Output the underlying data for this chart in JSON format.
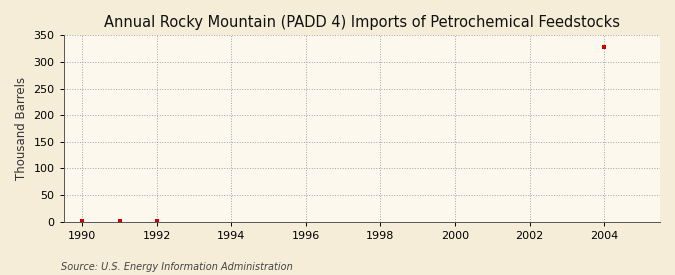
{
  "title": "Annual Rocky Mountain (PADD 4) Imports of Petrochemical Feedstocks",
  "ylabel": "Thousand Barrels",
  "source_text": "Source: U.S. Energy Information Administration",
  "background_color": "#f5edd8",
  "plot_bg_color": "#fdf8ee",
  "data_points": [
    {
      "year": 1990,
      "value": 2
    },
    {
      "year": 1991,
      "value": 2
    },
    {
      "year": 1992,
      "value": 2
    },
    {
      "year": 2004,
      "value": 328
    }
  ],
  "marker_color": "#cc0000",
  "marker": "s",
  "marker_size": 3.5,
  "xlim": [
    1989.5,
    2005.5
  ],
  "ylim": [
    0,
    350
  ],
  "yticks": [
    0,
    50,
    100,
    150,
    200,
    250,
    300,
    350
  ],
  "xticks": [
    1990,
    1992,
    1994,
    1996,
    1998,
    2000,
    2002,
    2004
  ],
  "grid_color": "#999999",
  "grid_linestyle": ":",
  "grid_alpha": 0.9,
  "title_fontsize": 10.5,
  "ylabel_fontsize": 8.5,
  "tick_fontsize": 8,
  "source_fontsize": 7
}
